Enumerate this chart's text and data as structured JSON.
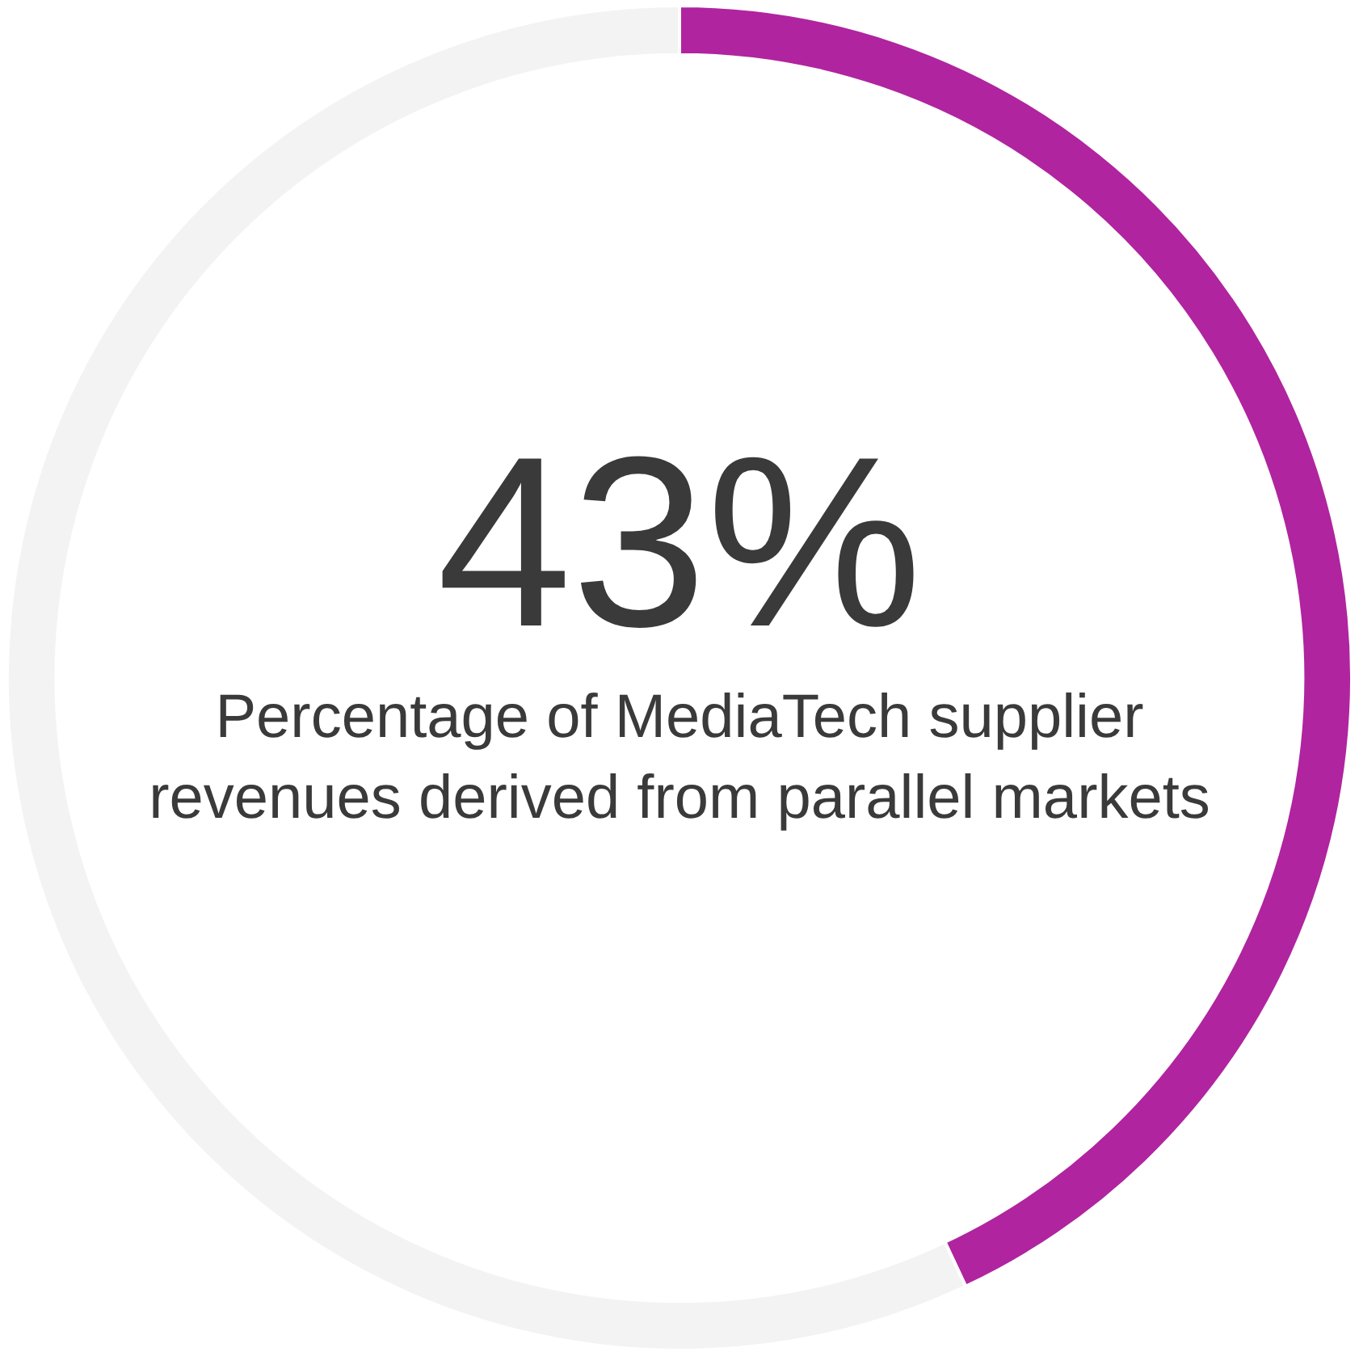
{
  "chart_data": {
    "type": "donut",
    "title": "Percentage of MediaTech supplier revenues derived from parallel markets",
    "categories": [
      null,
      null
    ],
    "values": [
      43,
      57
    ],
    "colors": [
      "#b0249f",
      "#f3f3f3"
    ],
    "value_labels": [
      "43%",
      null
    ],
    "legend": false
  }
}
